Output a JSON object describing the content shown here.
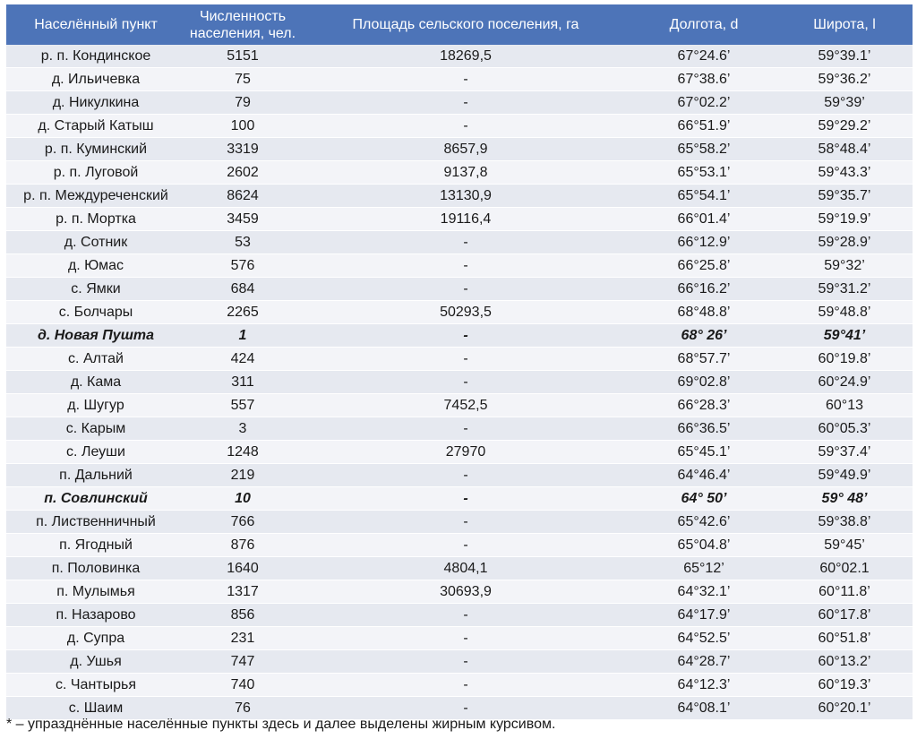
{
  "table": {
    "headers": [
      "Населённый пункт",
      "Численность населения, чел.",
      "Площадь сельского поселения, га",
      "Долгота, d",
      "Широта, l"
    ],
    "rows": [
      {
        "name": "р. п. Кондинское",
        "population": "5151",
        "area": "18269,5",
        "lon": "67°24.6’",
        "lat": "59°39.1’",
        "abolished": false
      },
      {
        "name": "д. Ильичевка",
        "population": "75",
        "area": "-",
        "lon": "67°38.6’",
        "lat": "59°36.2’",
        "abolished": false
      },
      {
        "name": "д. Никулкина",
        "population": "79",
        "area": "-",
        "lon": "67°02.2’",
        "lat": "59°39’",
        "abolished": false
      },
      {
        "name": "д. Старый Катыш",
        "population": "100",
        "area": "-",
        "lon": "66°51.9’",
        "lat": "59°29.2’",
        "abolished": false
      },
      {
        "name": "р. п. Куминский",
        "population": "3319",
        "area": "8657,9",
        "lon": "65°58.2’",
        "lat": "58°48.4’",
        "abolished": false
      },
      {
        "name": "р. п. Луговой",
        "population": "2602",
        "area": "9137,8",
        "lon": "65°53.1’",
        "lat": "59°43.3’",
        "abolished": false
      },
      {
        "name": "р. п. Междуреченский",
        "population": "8624",
        "area": "13130,9",
        "lon": "65°54.1’",
        "lat": "59°35.7’",
        "abolished": false
      },
      {
        "name": "р. п. Мортка",
        "population": "3459",
        "area": "19116,4",
        "lon": "66°01.4’",
        "lat": "59°19.9’",
        "abolished": false
      },
      {
        "name": "д. Сотник",
        "population": "53",
        "area": "-",
        "lon": "66°12.9’",
        "lat": "59°28.9’",
        "abolished": false
      },
      {
        "name": "д. Юмас",
        "population": "576",
        "area": "-",
        "lon": "66°25.8’",
        "lat": "59°32’",
        "abolished": false
      },
      {
        "name": "с. Ямки",
        "population": "684",
        "area": "-",
        "lon": "66°16.2’",
        "lat": "59°31.2’",
        "abolished": false
      },
      {
        "name": "с. Болчары",
        "population": "2265",
        "area": "50293,5",
        "lon": "68°48.8’",
        "lat": "59°48.8’",
        "abolished": false
      },
      {
        "name": "д. Новая Пушта",
        "population": "1",
        "area": "-",
        "lon": "68° 26’",
        "lat": "59°41’",
        "abolished": true
      },
      {
        "name": "с. Алтай",
        "population": "424",
        "area": "-",
        "lon": "68°57.7’",
        "lat": "60°19.8’",
        "abolished": false
      },
      {
        "name": "д. Кама",
        "population": "311",
        "area": "-",
        "lon": "69°02.8’",
        "lat": "60°24.9’",
        "abolished": false
      },
      {
        "name": "д. Шугур",
        "population": "557",
        "area": "7452,5",
        "lon": "66°28.3’",
        "lat": "60°13",
        "abolished": false
      },
      {
        "name": "с. Карым",
        "population": "3",
        "area": "-",
        "lon": "66°36.5’",
        "lat": "60°05.3’",
        "abolished": false
      },
      {
        "name": "с. Леуши",
        "population": "1248",
        "area": "27970",
        "lon": "65°45.1’",
        "lat": "59°37.4’",
        "abolished": false
      },
      {
        "name": "п. Дальний",
        "population": "219",
        "area": "-",
        "lon": "64°46.4’",
        "lat": "59°49.9’",
        "abolished": false
      },
      {
        "name": "п. Совлинский",
        "population": "10",
        "area": "-",
        "lon": "64° 50’",
        "lat": "59° 48’",
        "abolished": true
      },
      {
        "name": "п. Лиственничный",
        "population": "766",
        "area": "-",
        "lon": "65°42.6’",
        "lat": "59°38.8’",
        "abolished": false
      },
      {
        "name": "п. Ягодный",
        "population": "876",
        "area": "-",
        "lon": "65°04.8’",
        "lat": "59°45’",
        "abolished": false
      },
      {
        "name": "п. Половинка",
        "population": "1640",
        "area": "4804,1",
        "lon": "65°12’",
        "lat": "60°02.1",
        "abolished": false
      },
      {
        "name": "п. Мулымья",
        "population": "1317",
        "area": "30693,9",
        "lon": "64°32.1’",
        "lat": "60°11.8’",
        "abolished": false
      },
      {
        "name": "п. Назарово",
        "population": "856",
        "area": "-",
        "lon": "64°17.9’",
        "lat": "60°17.8’",
        "abolished": false
      },
      {
        "name": "д. Супра",
        "population": "231",
        "area": "-",
        "lon": "64°52.5’",
        "lat": "60°51.8’",
        "abolished": false
      },
      {
        "name": "д. Ушья",
        "population": "747",
        "area": "-",
        "lon": "64°28.7’",
        "lat": "60°13.2’",
        "abolished": false
      },
      {
        "name": "с. Чантырья",
        "population": "740",
        "area": "-",
        "lon": "64°12.3’",
        "lat": "60°19.3’",
        "abolished": false
      },
      {
        "name": "с. Шаим",
        "population": "76",
        "area": "-",
        "lon": "64°08.1’",
        "lat": "60°20.1’",
        "abolished": false
      }
    ]
  },
  "footnote": "* – упразднённые населённые пункты здесь и далее выделены жирным курсивом.",
  "colors": {
    "header_bg": "#4d74b8",
    "header_text": "#ffffff",
    "row_odd": "#e6e9f0",
    "row_even": "#f3f4f8"
  }
}
